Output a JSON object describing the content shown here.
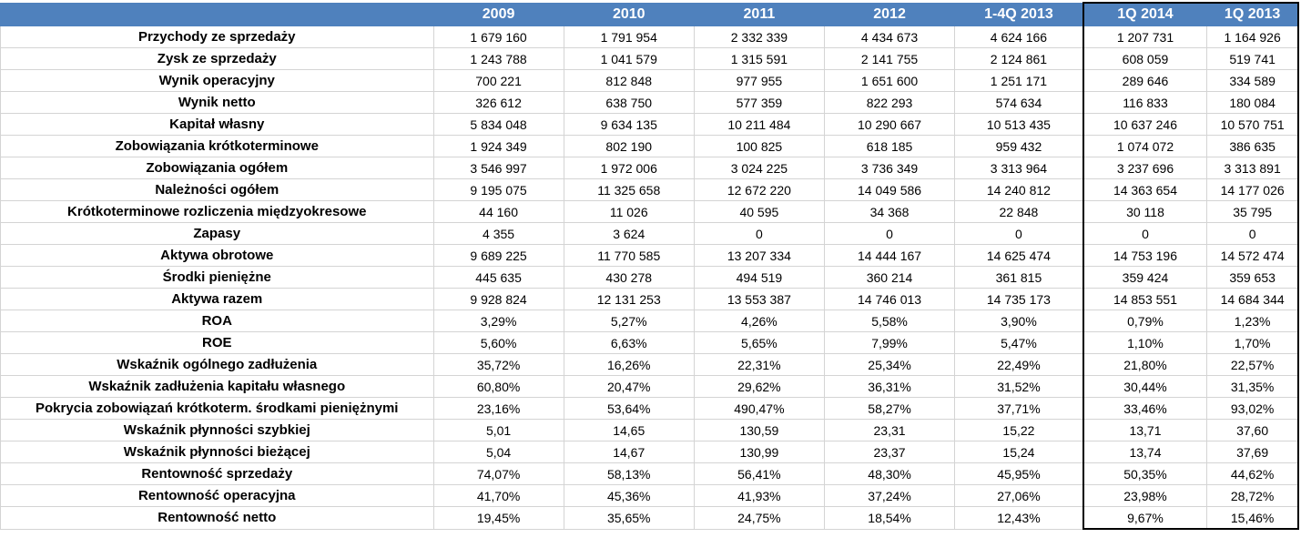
{
  "table": {
    "columns": [
      "",
      "2009",
      "2010",
      "2011",
      "2012",
      "1-4Q 2013",
      "1Q 2014",
      "1Q 2013"
    ],
    "rows": [
      {
        "label": "Przychody ze sprzedaży",
        "values": [
          "1 679 160",
          "1 791 954",
          "2 332 339",
          "4 434 673",
          "4 624 166",
          "1 207 731",
          "1 164 926"
        ]
      },
      {
        "label": "Zysk ze sprzedaży",
        "values": [
          "1 243 788",
          "1 041 579",
          "1 315 591",
          "2 141 755",
          "2 124 861",
          "608 059",
          "519 741"
        ]
      },
      {
        "label": "Wynik operacyjny",
        "values": [
          "700 221",
          "812 848",
          "977 955",
          "1 651 600",
          "1 251 171",
          "289 646",
          "334 589"
        ]
      },
      {
        "label": "Wynik netto",
        "values": [
          "326 612",
          "638 750",
          "577 359",
          "822 293",
          "574 634",
          "116 833",
          "180 084"
        ]
      },
      {
        "label": "Kapitał własny",
        "values": [
          "5 834 048",
          "9 634 135",
          "10 211 484",
          "10 290 667",
          "10 513 435",
          "10 637 246",
          "10 570 751"
        ]
      },
      {
        "label": "Zobowiązania krótkoterminowe",
        "values": [
          "1 924 349",
          "802 190",
          "100 825",
          "618 185",
          "959 432",
          "1 074 072",
          "386 635"
        ]
      },
      {
        "label": "Zobowiązania ogółem",
        "values": [
          "3 546 997",
          "1 972 006",
          "3 024 225",
          "3 736 349",
          "3 313 964",
          "3 237 696",
          "3 313 891"
        ]
      },
      {
        "label": "Należności ogółem",
        "values": [
          "9 195 075",
          "11 325 658",
          "12 672 220",
          "14 049 586",
          "14 240 812",
          "14 363 654",
          "14 177 026"
        ]
      },
      {
        "label": "Krótkoterminowe rozliczenia międzyokresowe",
        "values": [
          "44 160",
          "11 026",
          "40 595",
          "34 368",
          "22 848",
          "30 118",
          "35 795"
        ]
      },
      {
        "label": "Zapasy",
        "values": [
          "4 355",
          "3 624",
          "0",
          "0",
          "0",
          "0",
          "0"
        ]
      },
      {
        "label": "Aktywa obrotowe",
        "values": [
          "9 689 225",
          "11 770 585",
          "13 207 334",
          "14 444 167",
          "14 625 474",
          "14 753 196",
          "14 572 474"
        ]
      },
      {
        "label": "Środki pieniężne",
        "values": [
          "445 635",
          "430 278",
          "494 519",
          "360 214",
          "361 815",
          "359 424",
          "359 653"
        ]
      },
      {
        "label": "Aktywa razem",
        "values": [
          "9 928 824",
          "12 131 253",
          "13 553 387",
          "14 746 013",
          "14 735 173",
          "14 853 551",
          "14 684 344"
        ]
      },
      {
        "label": "ROA",
        "values": [
          "3,29%",
          "5,27%",
          "4,26%",
          "5,58%",
          "3,90%",
          "0,79%",
          "1,23%"
        ]
      },
      {
        "label": "ROE",
        "values": [
          "5,60%",
          "6,63%",
          "5,65%",
          "7,99%",
          "5,47%",
          "1,10%",
          "1,70%"
        ]
      },
      {
        "label": "Wskaźnik ogólnego zadłużenia",
        "values": [
          "35,72%",
          "16,26%",
          "22,31%",
          "25,34%",
          "22,49%",
          "21,80%",
          "22,57%"
        ]
      },
      {
        "label": "Wskaźnik zadłużenia kapitału własnego",
        "values": [
          "60,80%",
          "20,47%",
          "29,62%",
          "36,31%",
          "31,52%",
          "30,44%",
          "31,35%"
        ]
      },
      {
        "label": "Pokrycia zobowiązań krótkoterm. środkami pieniężnymi",
        "values": [
          "23,16%",
          "53,64%",
          "490,47%",
          "58,27%",
          "37,71%",
          "33,46%",
          "93,02%"
        ]
      },
      {
        "label": "Wskaźnik płynności szybkiej",
        "values": [
          "5,01",
          "14,65",
          "130,59",
          "23,31",
          "15,22",
          "13,71",
          "37,60"
        ]
      },
      {
        "label": "Wskaźnik płynności bieżącej",
        "values": [
          "5,04",
          "14,67",
          "130,99",
          "23,37",
          "15,24",
          "13,74",
          "37,69"
        ]
      },
      {
        "label": "Rentowność sprzedaży",
        "values": [
          "74,07%",
          "58,13%",
          "56,41%",
          "48,30%",
          "45,95%",
          "50,35%",
          "44,62%"
        ]
      },
      {
        "label": "Rentowność operacyjna",
        "values": [
          "41,70%",
          "45,36%",
          "41,93%",
          "37,24%",
          "27,06%",
          "23,98%",
          "28,72%"
        ]
      },
      {
        "label": "Rentowność netto",
        "values": [
          "19,45%",
          "35,65%",
          "24,75%",
          "18,54%",
          "12,43%",
          "9,67%",
          "15,46%"
        ]
      }
    ]
  },
  "colors": {
    "header_bg": "#4f81bd",
    "header_text": "#ffffff",
    "grid": "#d4d4d4",
    "separator": "#000000"
  }
}
